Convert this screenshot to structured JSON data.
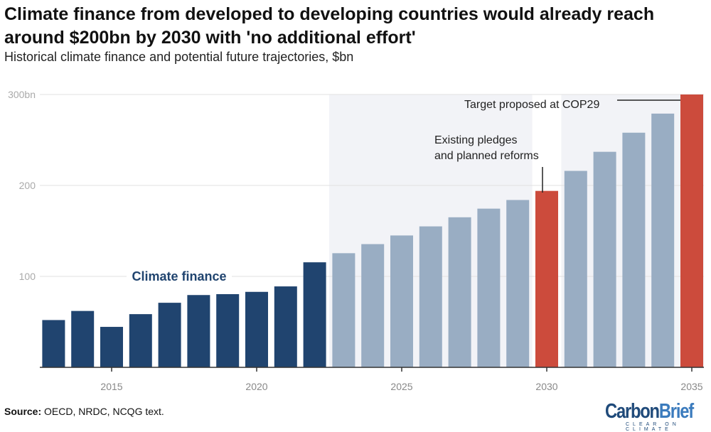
{
  "title": "Climate finance from developed to developing countries would already reach around $200bn by 2030 with 'no additional effort'",
  "subtitle": "Historical climate finance and potential future trajectories, $bn",
  "source_label": "Source:",
  "source_text": "OECD, NRDC, NCQG text.",
  "logo": {
    "part1": "Carbon",
    "part2": "Brief",
    "tagline": "CLEAR ON CLIMATE"
  },
  "chart_data": {
    "type": "bar",
    "x": [
      2013,
      2014,
      2015,
      2016,
      2017,
      2018,
      2019,
      2020,
      2021,
      2022,
      2023,
      2024,
      2025,
      2026,
      2027,
      2028,
      2029,
      2030,
      2031,
      2032,
      2033,
      2034,
      2035
    ],
    "values": [
      52,
      62,
      44.5,
      58.5,
      71,
      79.5,
      80.5,
      83,
      89,
      115.5,
      125.5,
      135.5,
      145,
      155,
      165,
      174.5,
      184,
      194,
      216,
      237,
      258,
      279,
      300
    ],
    "categories_type": [
      "historical",
      "historical",
      "historical",
      "historical",
      "historical",
      "historical",
      "historical",
      "historical",
      "historical",
      "historical",
      "projection",
      "projection",
      "projection",
      "projection",
      "projection",
      "projection",
      "projection",
      "highlight",
      "projection",
      "projection",
      "projection",
      "projection",
      "highlight"
    ],
    "colors": {
      "historical": "#20446f",
      "projection": "#99adc3",
      "highlight": "#cc4b3c",
      "shade": "#f2f3f7"
    },
    "ylim": [
      0,
      300
    ],
    "yticks": [
      100,
      200,
      300
    ],
    "ytick_labels": [
      "100",
      "200",
      "300bn"
    ],
    "xticks": [
      2015,
      2020,
      2025,
      2030,
      2035
    ],
    "xtick_labels": [
      "2015",
      "2020",
      "2025",
      "2030",
      "2035"
    ],
    "grid": true,
    "annotations": [
      {
        "text": "Climate finance",
        "type": "series-label"
      },
      {
        "lines": [
          "Existing pledges",
          "and planned reforms"
        ],
        "year": 2030
      },
      {
        "text": "Target proposed at COP29",
        "year": 2035
      }
    ]
  }
}
